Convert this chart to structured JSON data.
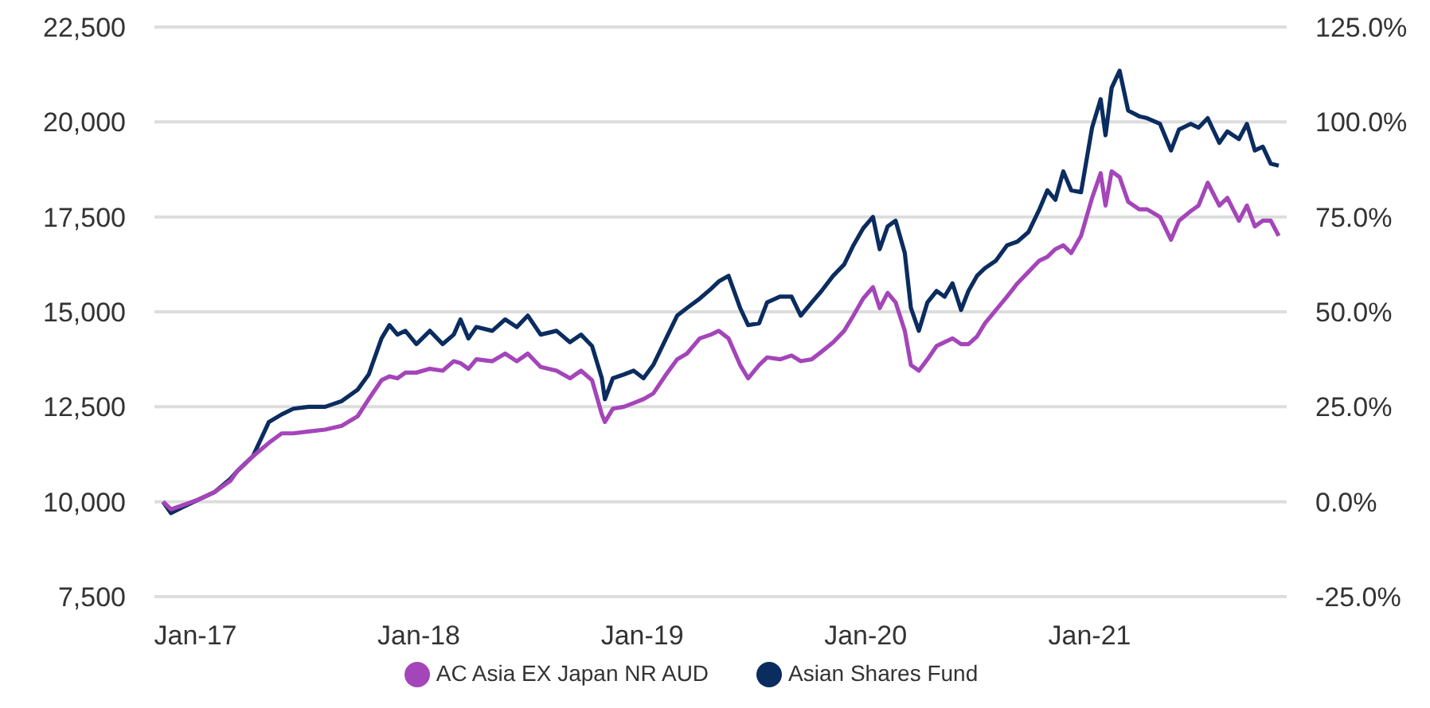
{
  "chart_data": {
    "type": "line",
    "x": [
      "2016-11-09",
      "2016-11-22",
      "2016-12-10",
      "2017-01-05",
      "2017-02-01",
      "2017-02-27",
      "2017-03-10",
      "2017-04-05",
      "2017-05-01",
      "2017-05-22",
      "2017-06-10",
      "2017-07-05",
      "2017-08-01",
      "2017-08-28",
      "2017-09-23",
      "2017-10-11",
      "2017-11-01",
      "2017-11-14",
      "2017-11-27",
      "2017-12-10",
      "2017-12-28",
      "2018-01-19",
      "2018-02-09",
      "2018-02-27",
      "2018-03-10",
      "2018-03-23",
      "2018-04-05",
      "2018-05-01",
      "2018-05-22",
      "2018-06-10",
      "2018-06-28",
      "2018-07-19",
      "2018-08-14",
      "2018-09-05",
      "2018-09-23",
      "2018-10-11",
      "2018-10-27",
      "2018-11-01",
      "2018-11-14",
      "2018-12-02",
      "2018-12-18",
      "2019-01-03",
      "2019-01-19",
      "2019-02-09",
      "2019-02-27",
      "2019-03-15",
      "2019-04-05",
      "2019-04-23",
      "2019-05-06",
      "2019-05-22",
      "2019-06-10",
      "2019-06-23",
      "2019-07-11",
      "2019-07-24",
      "2019-08-14",
      "2019-09-02",
      "2019-09-17",
      "2019-10-05",
      "2019-10-21",
      "2019-11-09",
      "2019-11-27",
      "2019-12-12",
      "2019-12-28",
      "2020-01-13",
      "2020-01-24",
      "2020-02-06",
      "2020-02-19",
      "2020-03-05",
      "2020-03-15",
      "2020-03-28",
      "2020-04-11",
      "2020-04-26",
      "2020-05-09",
      "2020-05-22",
      "2020-06-05",
      "2020-06-17",
      "2020-07-01",
      "2020-07-14",
      "2020-08-01",
      "2020-08-19",
      "2020-09-05",
      "2020-09-23",
      "2020-10-11",
      "2020-10-24",
      "2020-11-06",
      "2020-11-19",
      "2020-12-02",
      "2020-12-18",
      "2021-01-05",
      "2021-01-19",
      "2021-01-27",
      "2021-02-06",
      "2021-02-19",
      "2021-03-05",
      "2021-03-23",
      "2021-04-05",
      "2021-04-26",
      "2021-05-14",
      "2021-05-27",
      "2021-06-15",
      "2021-06-28",
      "2021-07-13",
      "2021-08-01",
      "2021-08-14",
      "2021-09-02",
      "2021-09-15",
      "2021-09-28",
      "2021-10-11",
      "2021-10-24",
      "2021-11-06"
    ],
    "series": [
      {
        "name": "Asian Shares Fund",
        "color": "#0b2c5f",
        "values": [
          10000,
          9700,
          9850,
          10050,
          10250,
          10600,
          10800,
          11200,
          12100,
          12300,
          12450,
          12500,
          12500,
          12650,
          12950,
          13350,
          14300,
          14650,
          14400,
          14500,
          14150,
          14500,
          14150,
          14400,
          14800,
          14300,
          14600,
          14500,
          14800,
          14600,
          14900,
          14400,
          14500,
          14200,
          14400,
          14100,
          13250,
          12700,
          13250,
          13350,
          13450,
          13250,
          13600,
          14300,
          14900,
          15100,
          15350,
          15600,
          15800,
          15950,
          15100,
          14650,
          14700,
          15250,
          15400,
          15400,
          14900,
          15250,
          15550,
          15950,
          16250,
          16750,
          17200,
          17500,
          16650,
          17250,
          17400,
          16550,
          15100,
          14500,
          15250,
          15550,
          15400,
          15750,
          15050,
          15550,
          15950,
          16150,
          16350,
          16750,
          16850,
          17100,
          17700,
          18200,
          17950,
          18700,
          18200,
          18150,
          19850,
          20600,
          19650,
          20900,
          21350,
          20300,
          20150,
          20100,
          19950,
          19250,
          19800,
          19950,
          19850,
          20100,
          19450,
          19750,
          19550,
          19950,
          19250,
          19350,
          18900,
          18850
        ]
      },
      {
        "name": "AC Asia EX Japan NR AUD",
        "color": "#a445b9",
        "values": [
          10000,
          9800,
          9900,
          10050,
          10250,
          10550,
          10800,
          11200,
          11550,
          11800,
          11800,
          11850,
          11900,
          12000,
          12250,
          12700,
          13200,
          13300,
          13250,
          13400,
          13400,
          13500,
          13450,
          13700,
          13650,
          13500,
          13750,
          13700,
          13900,
          13700,
          13900,
          13550,
          13450,
          13250,
          13450,
          13200,
          12300,
          12100,
          12450,
          12500,
          12600,
          12700,
          12850,
          13350,
          13750,
          13900,
          14300,
          14400,
          14500,
          14300,
          13600,
          13250,
          13600,
          13800,
          13750,
          13850,
          13700,
          13750,
          13950,
          14200,
          14500,
          14900,
          15350,
          15650,
          15100,
          15500,
          15250,
          14500,
          13600,
          13450,
          13750,
          14100,
          14200,
          14300,
          14150,
          14150,
          14350,
          14700,
          15050,
          15400,
          15750,
          16050,
          16350,
          16450,
          16650,
          16750,
          16550,
          17000,
          18000,
          18650,
          17800,
          18700,
          18550,
          17900,
          17700,
          17700,
          17500,
          16900,
          17400,
          17650,
          17800,
          18400,
          17800,
          18000,
          17400,
          17800,
          17250,
          17400,
          17400,
          17000
        ]
      }
    ],
    "xlim": [
      "2016-10-26",
      "2021-11-19"
    ],
    "xticks": [
      {
        "value": "2017-01-01",
        "label": "Jan-17"
      },
      {
        "value": "2018-01-01",
        "label": "Jan-18"
      },
      {
        "value": "2019-01-01",
        "label": "Jan-19"
      },
      {
        "value": "2020-01-01",
        "label": "Jan-20"
      },
      {
        "value": "2021-01-01",
        "label": "Jan-21"
      }
    ],
    "ylim": [
      7500,
      22500
    ],
    "yticks": [
      {
        "value": 7500,
        "label": "7,500"
      },
      {
        "value": 10000,
        "label": "10,000"
      },
      {
        "value": 12500,
        "label": "12,500"
      },
      {
        "value": 15000,
        "label": "15,000"
      },
      {
        "value": 17500,
        "label": "17,500"
      },
      {
        "value": 20000,
        "label": "20,000"
      },
      {
        "value": 22500,
        "label": "22,500"
      }
    ],
    "y2lim": [
      -25,
      125
    ],
    "y2ticks": [
      {
        "value": -25,
        "label": "-25.0%"
      },
      {
        "value": 0,
        "label": "0.0%"
      },
      {
        "value": 25,
        "label": "25.0%"
      },
      {
        "value": 50,
        "label": "50.0%"
      },
      {
        "value": 75,
        "label": "75.0%"
      },
      {
        "value": 100,
        "label": "100.0%"
      },
      {
        "value": 125,
        "label": "125.0%"
      }
    ],
    "grid": "y",
    "legend": "bottom",
    "marker": "none",
    "line_style": "solid"
  }
}
